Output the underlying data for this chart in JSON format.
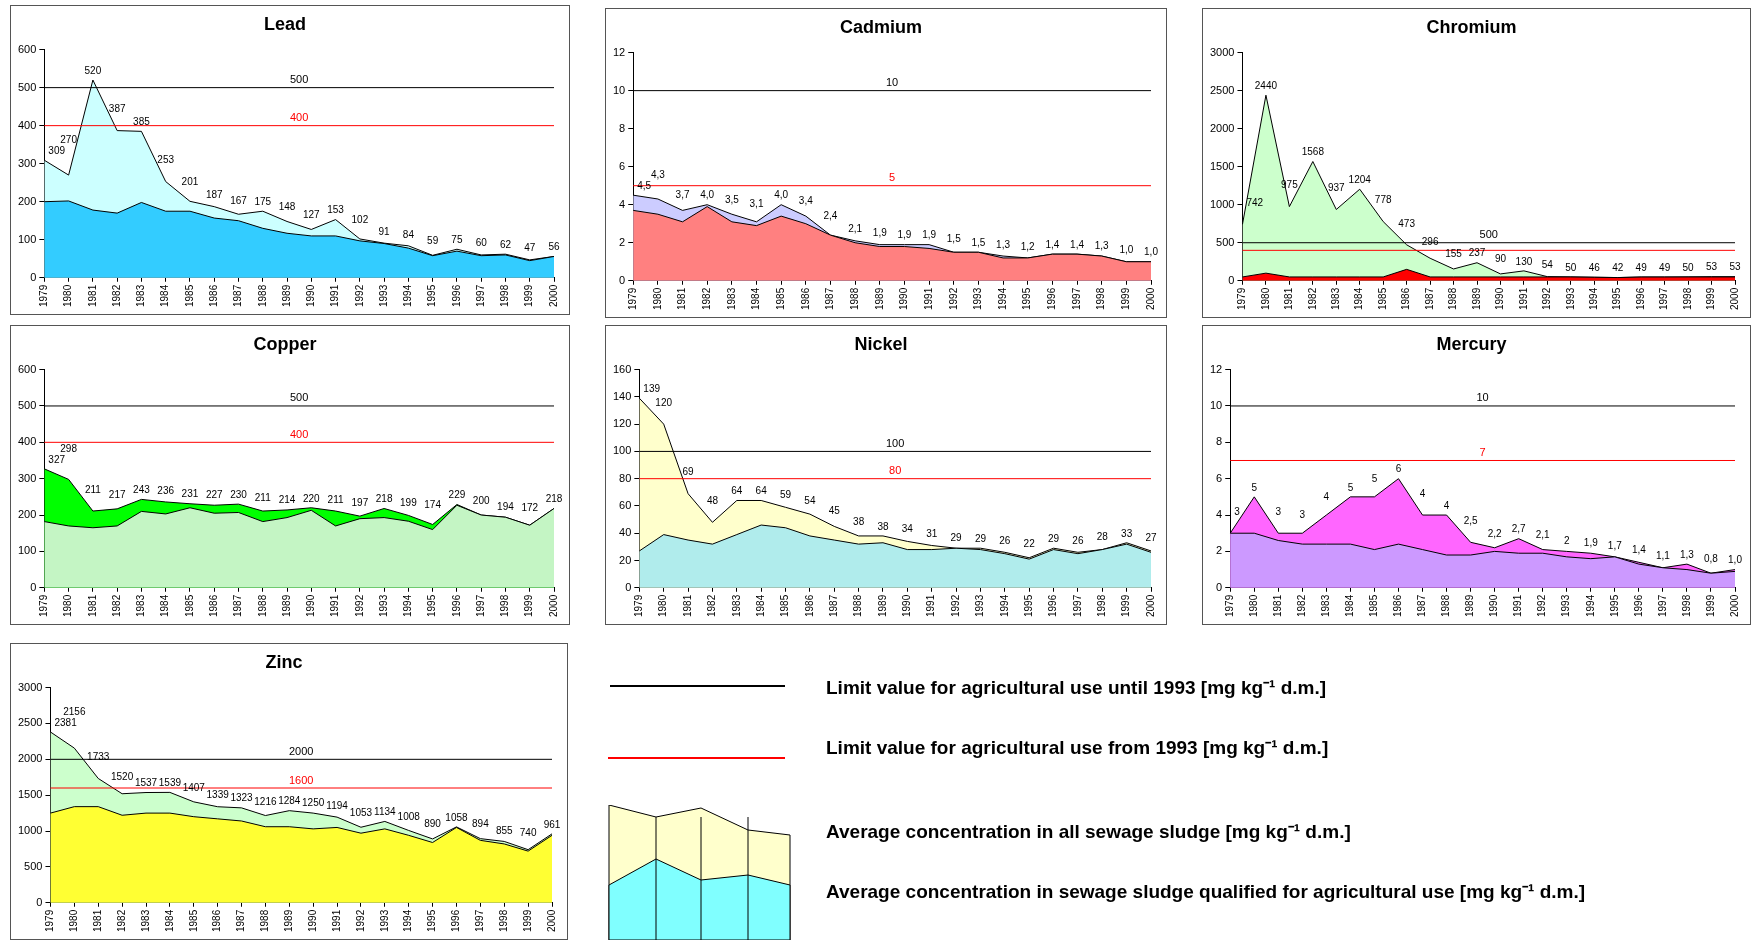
{
  "chart_data": [
    {
      "type": "area",
      "title": "Lead",
      "categories": [
        "1979",
        "1980",
        "1981",
        "1982",
        "1983",
        "1984",
        "1985",
        "1986",
        "1987",
        "1988",
        "1989",
        "1990",
        "1991",
        "1992",
        "1993",
        "1994",
        "1995",
        "1996",
        "1997",
        "1998",
        "1999",
        "2000"
      ],
      "ylim": [
        0,
        600
      ],
      "yticks": [
        0,
        100,
        200,
        300,
        400,
        500,
        600
      ],
      "series": [
        {
          "color": "#ccffff",
          "values": [
            309,
            270,
            520,
            387,
            385,
            253,
            201,
            187,
            167,
            175,
            148,
            127,
            153,
            102,
            91,
            84,
            59,
            75,
            60,
            62,
            47,
            56
          ],
          "value_labels": [
            "309",
            "270",
            "520",
            "387",
            "385",
            "253",
            "201",
            "187",
            "167",
            "175",
            "148",
            "127",
            "153",
            "102",
            "91",
            "84",
            "59",
            "75",
            "60",
            "62",
            "47",
            "56"
          ]
        },
        {
          "color": "#33ccff",
          "values": [
            200,
            202,
            178,
            170,
            198,
            175,
            175,
            157,
            150,
            130,
            117,
            110,
            110,
            97,
            90,
            78,
            58,
            70,
            58,
            60,
            45,
            56
          ]
        }
      ],
      "ref_lines": [
        {
          "axis": "y",
          "value": 500,
          "label": "500",
          "color": "#000000"
        },
        {
          "axis": "y",
          "value": 400,
          "label": "400",
          "color": "#ff0000"
        }
      ]
    },
    {
      "type": "area",
      "title": "Cadmium",
      "categories": [
        "1979",
        "1980",
        "1981",
        "1982",
        "1983",
        "1984",
        "1985",
        "1986",
        "1987",
        "1988",
        "1989",
        "1990",
        "1991",
        "1992",
        "1993",
        "1994",
        "1995",
        "1996",
        "1997",
        "1998",
        "1999",
        "2000"
      ],
      "ylim": [
        0,
        12
      ],
      "yticks": [
        0,
        2,
        4,
        6,
        8,
        10,
        12
      ],
      "series": [
        {
          "color": "#ccccff",
          "values": [
            4.5,
            4.3,
            3.7,
            4.0,
            3.5,
            3.1,
            4.0,
            3.4,
            2.4,
            2.1,
            1.9,
            1.9,
            1.9,
            1.5,
            1.5,
            1.3,
            1.2,
            1.4,
            1.4,
            1.3,
            1.0,
            1.0
          ],
          "value_labels": [
            "4,5",
            "4,3",
            "3,7",
            "4,0",
            "3,5",
            "3,1",
            "4,0",
            "3,4",
            "2,4",
            "2,1",
            "1,9",
            "1,9",
            "1,9",
            "1,5",
            "1,5",
            "1,3",
            "1,2",
            "1,4",
            "1,4",
            "1,3",
            "1,0",
            "1,0"
          ]
        },
        {
          "color": "#ff8080",
          "values": [
            3.7,
            3.5,
            3.1,
            3.9,
            3.1,
            2.9,
            3.4,
            3.0,
            2.4,
            2.0,
            1.8,
            1.8,
            1.7,
            1.5,
            1.5,
            1.2,
            1.2,
            1.4,
            1.4,
            1.3,
            1.0,
            1.0
          ]
        }
      ],
      "ref_lines": [
        {
          "axis": "y",
          "value": 10,
          "label": "10",
          "color": "#000000"
        },
        {
          "axis": "y",
          "value": 5,
          "label": "5",
          "color": "#ff0000"
        }
      ]
    },
    {
      "type": "area",
      "title": "Chromium",
      "categories": [
        "1979",
        "1980",
        "1981",
        "1982",
        "1983",
        "1984",
        "1985",
        "1986",
        "1987",
        "1988",
        "1989",
        "1990",
        "1991",
        "1992",
        "1993",
        "1994",
        "1995",
        "1996",
        "1997",
        "1998",
        "1999",
        "2000"
      ],
      "ylim": [
        0,
        3000
      ],
      "yticks": [
        0,
        500,
        1000,
        1500,
        2000,
        2500,
        3000
      ],
      "series": [
        {
          "color": "#ccffcc",
          "values": [
            742,
            2440,
            975,
            1568,
            937,
            1204,
            778,
            473,
            296,
            155,
            237,
            90,
            130,
            54,
            50,
            46,
            42,
            49,
            49,
            50,
            53,
            53
          ],
          "value_labels": [
            "742",
            "2440",
            "975",
            "1568",
            "937",
            "1204",
            "778",
            "473",
            "296",
            "155",
            "237",
            "90",
            "130",
            "54",
            "50",
            "46",
            "42",
            "49",
            "49",
            "50",
            "53",
            "53"
          ]
        },
        {
          "color": "#ff0000",
          "values": [
            50,
            100,
            50,
            50,
            50,
            50,
            50,
            150,
            50,
            50,
            50,
            50,
            50,
            50,
            50,
            46,
            42,
            49,
            49,
            50,
            50,
            50
          ]
        }
      ],
      "ref_lines": [
        {
          "axis": "y",
          "value": 500,
          "label": "500",
          "color": "#000000"
        },
        {
          "axis": "y",
          "value": 400,
          "label": null,
          "color": "#ff0000"
        }
      ]
    },
    {
      "type": "area",
      "title": "Copper",
      "categories": [
        "1979",
        "1980",
        "1981",
        "1982",
        "1983",
        "1984",
        "1985",
        "1986",
        "1987",
        "1988",
        "1989",
        "1990",
        "1991",
        "1992",
        "1993",
        "1994",
        "1995",
        "1996",
        "1997",
        "1998",
        "1999",
        "2000"
      ],
      "ylim": [
        0,
        600
      ],
      "yticks": [
        0,
        100,
        200,
        300,
        400,
        500,
        600
      ],
      "series": [
        {
          "color": "#00ff00",
          "values": [
            327,
            298,
            211,
            217,
            243,
            236,
            231,
            227,
            230,
            211,
            214,
            220,
            211,
            197,
            218,
            199,
            174,
            229,
            200,
            194,
            172,
            218
          ],
          "value_labels": [
            "327",
            "298",
            "211",
            "217",
            "243",
            "236",
            "231",
            "227",
            "230",
            "211",
            "214",
            "220",
            "211",
            "197",
            "218",
            "199",
            "174",
            "229",
            "200",
            "194",
            "172",
            "218"
          ]
        },
        {
          "color": "#c4f5c4",
          "values": [
            182,
            170,
            165,
            170,
            210,
            203,
            220,
            205,
            207,
            182,
            193,
            213,
            170,
            190,
            193,
            183,
            160,
            227,
            200,
            194,
            172,
            218
          ]
        }
      ],
      "ref_lines": [
        {
          "axis": "y",
          "value": 500,
          "label": "500",
          "color": "#000000"
        },
        {
          "axis": "y",
          "value": 400,
          "label": "400",
          "color": "#ff0000"
        }
      ]
    },
    {
      "type": "area",
      "title": "Nickel",
      "categories": [
        "1979",
        "1980",
        "1981",
        "1982",
        "1983",
        "1984",
        "1985",
        "1986",
        "1987",
        "1988",
        "1989",
        "1990",
        "1991",
        "1992",
        "1993",
        "1994",
        "1995",
        "1996",
        "1997",
        "1998",
        "1999",
        "2000"
      ],
      "ylim": [
        0,
        160
      ],
      "yticks": [
        0,
        20,
        40,
        60,
        80,
        100,
        120,
        140,
        160
      ],
      "series": [
        {
          "color": "#ffffcc",
          "values": [
            139,
            120,
            69,
            48,
            64,
            64,
            59,
            54,
            45,
            38,
            38,
            34,
            31,
            29,
            29,
            26,
            22,
            29,
            26,
            28,
            33,
            27
          ],
          "value_labels": [
            "139",
            "120",
            "69",
            "48",
            "64",
            "64",
            "59",
            "54",
            "45",
            "38",
            "38",
            "34",
            "31",
            "29",
            "29",
            "26",
            "22",
            "29",
            "26",
            "28",
            "33",
            "27"
          ]
        },
        {
          "color": "#b0ecec",
          "values": [
            27,
            39,
            35,
            32,
            39,
            46,
            44,
            38,
            35,
            32,
            33,
            28,
            28,
            29,
            28,
            25,
            21,
            28,
            25,
            28,
            32,
            26
          ]
        }
      ],
      "ref_lines": [
        {
          "axis": "y",
          "value": 100,
          "label": "100",
          "color": "#000000"
        },
        {
          "axis": "y",
          "value": 80,
          "label": "80",
          "color": "#ff0000"
        }
      ]
    },
    {
      "type": "area",
      "title": "Mercury",
      "categories": [
        "1979",
        "1980",
        "1981",
        "1982",
        "1983",
        "1984",
        "1985",
        "1986",
        "1987",
        "1988",
        "1989",
        "1990",
        "1991",
        "1992",
        "1993",
        "1994",
        "1995",
        "1996",
        "1997",
        "1998",
        "1999",
        "2000"
      ],
      "ylim": [
        0,
        12
      ],
      "yticks": [
        0,
        2,
        4,
        6,
        8,
        10,
        12
      ],
      "series": [
        {
          "color": "#ff66ff",
          "values": [
            3,
            5,
            3,
            3,
            4,
            5,
            5,
            6,
            4,
            4,
            2.5,
            2.2,
            2.7,
            2.1,
            2,
            1.9,
            1.7,
            1.4,
            1.1,
            1.3,
            0.8,
            1.0
          ],
          "value_labels": [
            "3",
            "5",
            "3",
            "3",
            "4",
            "5",
            "5",
            "6",
            "4",
            "4",
            "2,5",
            "2,2",
            "2,7",
            "2,1",
            "2",
            "1,9",
            "1,7",
            "1,4",
            "1,1",
            "1,3",
            "0,8",
            "1,0"
          ]
        },
        {
          "color": "#cc99ff",
          "values": [
            3.0,
            3.0,
            2.6,
            2.4,
            2.4,
            2.4,
            2.1,
            2.4,
            2.1,
            1.8,
            1.8,
            2.0,
            1.9,
            1.9,
            1.7,
            1.6,
            1.7,
            1.3,
            1.1,
            1.0,
            0.8,
            0.9
          ]
        }
      ],
      "ref_lines": [
        {
          "axis": "y",
          "value": 10,
          "label": "10",
          "color": "#000000"
        },
        {
          "axis": "y",
          "value": 7,
          "label": "7",
          "color": "#ff0000"
        }
      ]
    },
    {
      "type": "area",
      "title": "Zinc",
      "categories": [
        "1979",
        "1980",
        "1981",
        "1982",
        "1983",
        "1984",
        "1985",
        "1986",
        "1987",
        "1988",
        "1989",
        "1990",
        "1991",
        "1992",
        "1993",
        "1994",
        "1995",
        "1996",
        "1997",
        "1998",
        "1999",
        "2000"
      ],
      "ylim": [
        0,
        3000
      ],
      "yticks": [
        0,
        500,
        1000,
        1500,
        2000,
        2500,
        3000
      ],
      "series": [
        {
          "color": "#ccffcc",
          "values": [
            2381,
            2156,
            1733,
            1520,
            1537,
            1539,
            1407,
            1339,
            1323,
            1216,
            1284,
            1250,
            1194,
            1053,
            1134,
            1008,
            890,
            1058,
            894,
            855,
            740,
            961
          ],
          "value_labels": [
            "2381",
            "2156",
            "1733",
            "1520",
            "1537",
            "1539",
            "1407",
            "1339",
            "1323",
            "1216",
            "1284",
            "1250",
            "1194",
            "1053",
            "1134",
            "1008",
            "890",
            "1058",
            "894",
            "855",
            "740",
            "961"
          ]
        },
        {
          "color": "#ffff33",
          "values": [
            1250,
            1340,
            1340,
            1220,
            1250,
            1250,
            1200,
            1170,
            1140,
            1060,
            1060,
            1030,
            1050,
            970,
            1030,
            940,
            840,
            1050,
            870,
            820,
            720,
            940
          ]
        }
      ],
      "ref_lines": [
        {
          "axis": "y",
          "value": 2000,
          "label": "2000",
          "color": "#000000"
        },
        {
          "axis": "y",
          "value": 1600,
          "label": "1600",
          "color": "#ff0000"
        }
      ]
    },
    {
      "type": "other",
      "annotations": [
        "Limit value for agricultural use until 1993 [mg kg⁻¹ d.m.]",
        "Limit value for agricultural use from 1993 [mg kg⁻¹ d.m.]",
        "Average concentration in all sewage sludge [mg kg⁻¹ d.m.]",
        "Average concentration in sewage sludge qualified for agricultural use [mg kg⁻¹ d.m.]"
      ]
    }
  ]
}
